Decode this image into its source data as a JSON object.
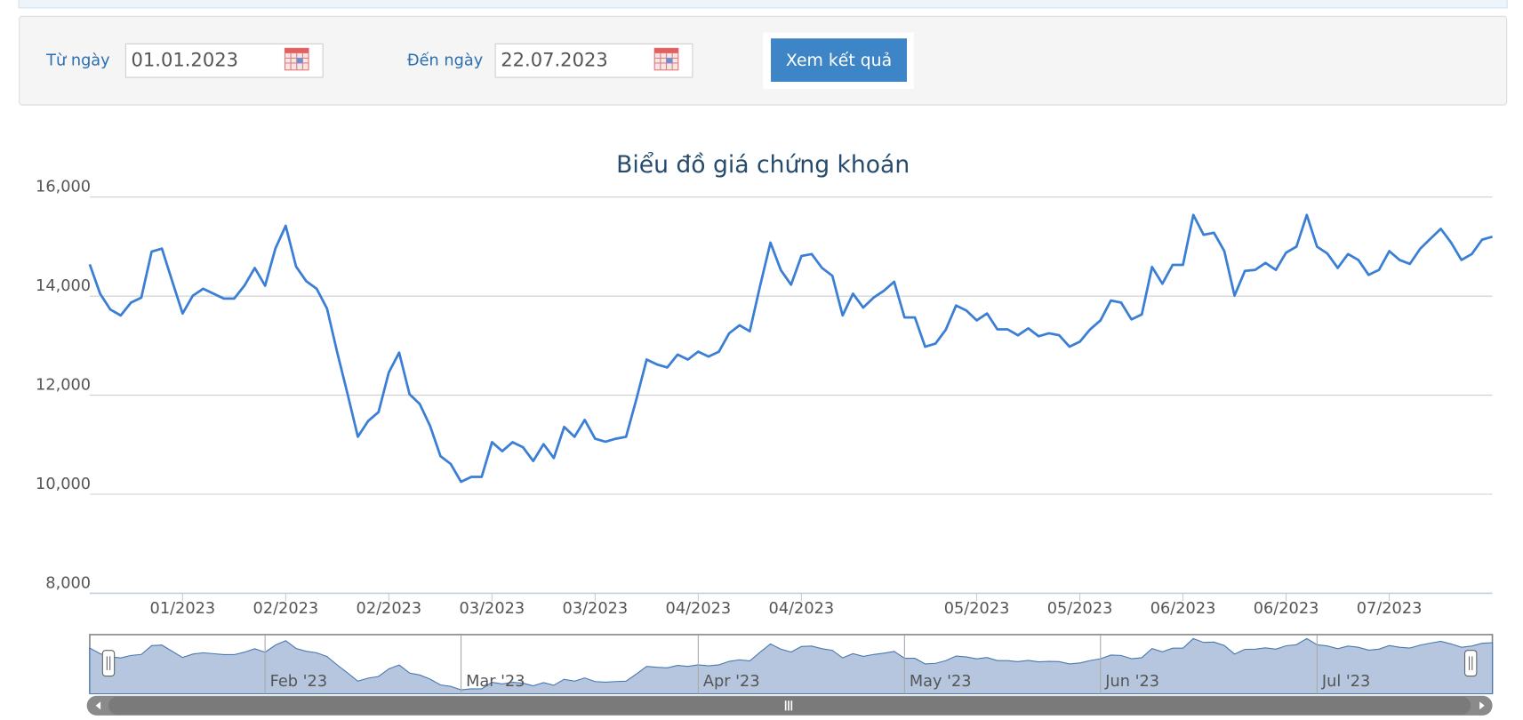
{
  "form": {
    "from_label": "Từ ngày",
    "from_value": "01.01.2023",
    "to_label": "Đến ngày",
    "to_value": "22.07.2023",
    "button": "Xem kết quả"
  },
  "chart_data": {
    "type": "line",
    "title": "Biểu đồ giá chứng khoán",
    "color": "#3a7fd5",
    "values": [
      14640,
      14050,
      13730,
      13610,
      13870,
      13970,
      14900,
      14960,
      14300,
      13650,
      14010,
      14150,
      14050,
      13950,
      13950,
      14210,
      14570,
      14210,
      14960,
      15420,
      14600,
      14300,
      14150,
      13750,
      12860,
      12020,
      11160,
      11480,
      11660,
      12460,
      12860,
      12020,
      11820,
      11380,
      10770,
      10610,
      10250,
      10350,
      10350,
      11050,
      10870,
      11050,
      10950,
      10670,
      11010,
      10730,
      11360,
      11160,
      11500,
      11120,
      11060,
      11120,
      11160,
      11920,
      12720,
      12620,
      12560,
      12820,
      12720,
      12880,
      12780,
      12880,
      13250,
      13410,
      13290,
      14210,
      15080,
      14530,
      14230,
      14810,
      14850,
      14570,
      14410,
      13610,
      14050,
      13770,
      13970,
      14110,
      14290,
      13570,
      13570,
      12980,
      13040,
      13320,
      13810,
      13710,
      13510,
      13650,
      13330,
      13330,
      13210,
      13350,
      13190,
      13250,
      13210,
      12980,
      13080,
      13330,
      13510,
      13910,
      13870,
      13530,
      13630,
      14590,
      14250,
      14630,
      14630,
      15640,
      15240,
      15280,
      14910,
      14010,
      14510,
      14530,
      14670,
      14530,
      14880,
      15000,
      15640,
      15000,
      14860,
      14570,
      14850,
      14730,
      14430,
      14530,
      14910,
      14730,
      14650,
      14960,
      15160,
      15360,
      15080,
      14730,
      14850,
      15140,
      15200
    ],
    "xlim": [
      0,
      136
    ],
    "xticks": [
      {
        "value": 9,
        "label": "01/2023"
      },
      {
        "value": 19,
        "label": "02/2023"
      },
      {
        "value": 29,
        "label": "02/2023"
      },
      {
        "value": 39,
        "label": "03/2023"
      },
      {
        "value": 49,
        "label": "03/2023"
      },
      {
        "value": 59,
        "label": "04/2023"
      },
      {
        "value": 69,
        "label": "04/2023"
      },
      {
        "value": 86,
        "label": "05/2023"
      },
      {
        "value": 96,
        "label": "05/2023"
      },
      {
        "value": 106,
        "label": "06/2023"
      },
      {
        "value": 116,
        "label": "06/2023"
      },
      {
        "value": 126,
        "label": "07/2023"
      }
    ],
    "ylim": [
      8000,
      16000
    ],
    "yticks": [
      {
        "value": 8000,
        "label": "8,000"
      },
      {
        "value": 10000,
        "label": "10,000"
      },
      {
        "value": 12000,
        "label": "12,000"
      },
      {
        "value": 14000,
        "label": "14,000"
      },
      {
        "value": 16000,
        "label": "16,000"
      }
    ],
    "grid": true,
    "navigator": {
      "xticks": [
        {
          "value": 17,
          "label": "Feb '23"
        },
        {
          "value": 36,
          "label": "Mar '23"
        },
        {
          "value": 59,
          "label": "Apr '23"
        },
        {
          "value": 79,
          "label": "May '23"
        },
        {
          "value": 98,
          "label": "Jun '23"
        },
        {
          "value": 119,
          "label": "Jul '23"
        }
      ]
    }
  }
}
